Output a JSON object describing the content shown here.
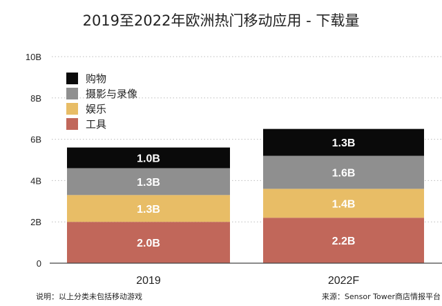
{
  "chart_data": {
    "type": "bar",
    "stacked": true,
    "title": "2019至2022年欧洲热门移动应用 - 下载量",
    "categories": [
      "2019",
      "2022F"
    ],
    "series": [
      {
        "name": "工具",
        "values": [
          2.0,
          2.2
        ],
        "labels": [
          "2.0B",
          "2.2B"
        ],
        "color": "#c1675a"
      },
      {
        "name": "娱乐",
        "values": [
          1.3,
          1.4
        ],
        "labels": [
          "1.3B",
          "1.4B"
        ],
        "color": "#e8bd66"
      },
      {
        "name": "摄影与录像",
        "values": [
          1.3,
          1.6
        ],
        "labels": [
          "1.3B",
          "1.6B"
        ],
        "color": "#8f8f8f"
      },
      {
        "name": "购物",
        "values": [
          1.0,
          1.3
        ],
        "labels": [
          "1.0B",
          "1.3B"
        ],
        "color": "#0a0a0a"
      }
    ],
    "legend_order": [
      "购物",
      "摄影与录像",
      "娱乐",
      "工具"
    ],
    "ylim": [
      0,
      10
    ],
    "yticks": [
      0,
      2,
      4,
      6,
      8,
      10
    ],
    "ytick_labels": [
      "0",
      "2B",
      "4B",
      "6B",
      "8B",
      "10B"
    ],
    "grid": true,
    "legend": "top-left"
  },
  "note": "说明：以上分类未包括移动游戏",
  "source": "来源：Sensor Tower商店情报平台"
}
